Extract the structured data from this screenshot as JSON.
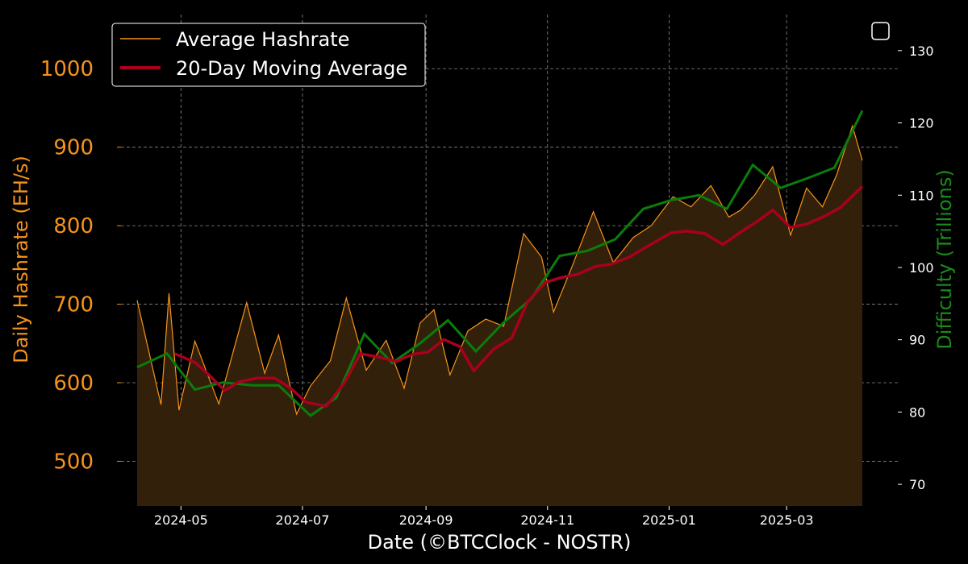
{
  "chart_data": {
    "type": "line",
    "xlabel": "Date (©BTCClock - NOSTR)",
    "ylabel_left": "Daily Hashrate (EH/s)",
    "ylabel_right": "Difficulty (Trillions)",
    "x_tick_labels": [
      "2024-05",
      "2024-07",
      "2024-09",
      "2024-11",
      "2025-01",
      "2025-03"
    ],
    "ylim_left": [
      443,
      1069
    ],
    "yticks_left": [
      500,
      600,
      700,
      800,
      900,
      1000
    ],
    "ylim_right": [
      67,
      135
    ],
    "yticks_right": [
      70,
      80,
      90,
      100,
      110,
      120,
      130
    ],
    "grid": true,
    "legend_position": "top-left",
    "colors": {
      "hashrate": "#f7931a",
      "fill": "#33200a",
      "ma20": "#a8001e",
      "difficulty": "#0a7d0a"
    },
    "series": [
      {
        "name": "Average Hashrate",
        "axis": "left",
        "note_fill": true,
        "x": [
          "2024-04-09",
          "2024-04-21",
          "2024-04-25",
          "2024-04-30",
          "2024-05-08",
          "2024-05-20",
          "2024-06-03",
          "2024-06-12",
          "2024-06-19",
          "2024-06-28",
          "2024-07-05",
          "2024-07-15",
          "2024-07-23",
          "2024-08-02",
          "2024-08-12",
          "2024-08-21",
          "2024-08-29",
          "2024-09-05",
          "2024-09-13",
          "2024-09-22",
          "2024-10-01",
          "2024-10-10",
          "2024-10-20",
          "2024-10-29",
          "2024-11-04",
          "2024-11-13",
          "2024-11-24",
          "2024-12-04",
          "2024-12-14",
          "2024-12-23",
          "2025-01-03",
          "2025-01-12",
          "2025-01-22",
          "2025-01-31",
          "2025-02-06",
          "2025-02-13",
          "2025-02-22",
          "2025-03-03",
          "2025-03-11",
          "2025-03-19",
          "2025-03-26",
          "2025-04-03",
          "2025-04-08"
        ],
        "values": [
          705,
          572,
          714,
          565,
          653,
          573,
          702,
          612,
          661,
          560,
          596,
          628,
          708,
          616,
          654,
          593,
          676,
          693,
          610,
          666,
          681,
          672,
          790,
          760,
          690,
          746,
          818,
          753,
          785,
          800,
          837,
          824,
          851,
          811,
          820,
          839,
          875,
          788,
          848,
          824,
          864,
          927,
          883
        ]
      },
      {
        "name": "20-Day Moving Average",
        "axis": "left",
        "x": [
          "2024-04-28",
          "2024-05-08",
          "2024-05-15",
          "2024-05-23",
          "2024-05-30",
          "2024-06-08",
          "2024-06-17",
          "2024-06-25",
          "2024-07-03",
          "2024-07-13",
          "2024-07-22",
          "2024-07-30",
          "2024-08-08",
          "2024-08-17",
          "2024-08-25",
          "2024-09-02",
          "2024-09-10",
          "2024-09-18",
          "2024-09-25",
          "2024-10-05",
          "2024-10-14",
          "2024-10-22",
          "2024-10-31",
          "2024-11-08",
          "2024-11-16",
          "2024-11-25",
          "2024-12-03",
          "2024-12-12",
          "2024-12-22",
          "2025-01-02",
          "2025-01-10",
          "2025-01-19",
          "2025-01-28",
          "2025-02-06",
          "2025-02-14",
          "2025-02-22",
          "2025-03-03",
          "2025-03-11",
          "2025-03-20",
          "2025-03-28",
          "2025-04-08"
        ],
        "values": [
          637,
          626,
          610,
          590,
          601,
          606,
          606,
          593,
          575,
          570,
          600,
          637,
          633,
          627,
          636,
          639,
          655,
          646,
          615,
          643,
          657,
          703,
          728,
          734,
          738,
          748,
          751,
          760,
          775,
          791,
          793,
          790,
          776,
          792,
          805,
          820,
          798,
          802,
          812,
          823,
          850
        ]
      },
      {
        "name": "Difficulty",
        "axis": "right",
        "x": [
          "2024-04-09",
          "2024-04-24",
          "2024-05-08",
          "2024-05-22",
          "2024-06-06",
          "2024-06-19",
          "2024-07-05",
          "2024-07-18",
          "2024-08-01",
          "2024-08-15",
          "2024-08-29",
          "2024-09-12",
          "2024-09-26",
          "2024-10-10",
          "2024-10-24",
          "2024-11-07",
          "2024-11-21",
          "2024-12-05",
          "2024-12-19",
          "2025-01-02",
          "2025-01-16",
          "2025-01-30",
          "2025-02-12",
          "2025-02-26",
          "2025-03-11",
          "2025-03-25",
          "2025-04-08"
        ],
        "values": [
          86.2,
          88.1,
          83.1,
          84.1,
          83.7,
          83.7,
          79.5,
          82.0,
          90.8,
          86.8,
          89.5,
          92.7,
          88.4,
          92.4,
          95.7,
          101.6,
          102.3,
          103.9,
          108.1,
          109.3,
          110.0,
          108.1,
          114.2,
          111.0,
          112.3,
          113.8,
          121.7
        ]
      }
    ]
  }
}
